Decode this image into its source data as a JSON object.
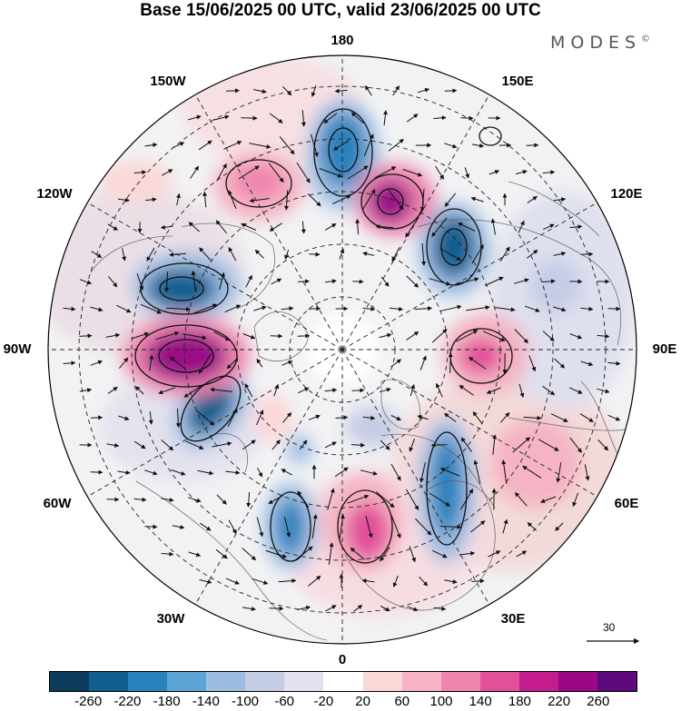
{
  "title": "Base 15/06/2025 00 UTC, valid 23/06/2025 00 UTC",
  "brand": {
    "name": "MODES",
    "mark": "©"
  },
  "map": {
    "projection": "north polar stereographic",
    "longitude_labels": {
      "lon_0": "0",
      "lon_30e": "30E",
      "lon_60e": "60E",
      "lon_90e": "90E",
      "lon_120e": "120E",
      "lon_150e": "150E",
      "lon_180": "180",
      "lon_150w": "150W",
      "lon_120w": "120W",
      "lon_90w": "90W",
      "lon_60w": "60W",
      "lon_30w": "30W"
    },
    "wind_reference_value": "30"
  },
  "colorbar": {
    "colors": [
      "#0d3b5c",
      "#115f8f",
      "#2a82bd",
      "#5aa5d3",
      "#9cbde2",
      "#c4cce6",
      "#e3e1f0",
      "#ffffff",
      "#fbd8d8",
      "#f5b3c3",
      "#ef85ae",
      "#e2509a",
      "#c41c8c",
      "#9a0887",
      "#5c0a7c"
    ],
    "tick_labels": [
      "-260",
      "-220",
      "-180",
      "-140",
      "-100",
      "-60",
      "-20",
      "20",
      "60",
      "100",
      "140",
      "180",
      "220",
      "260"
    ]
  }
}
